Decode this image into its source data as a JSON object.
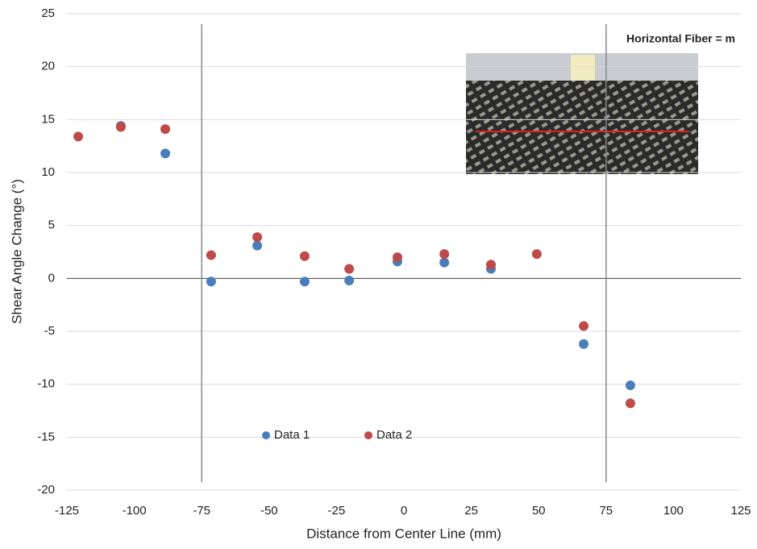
{
  "chart_data": {
    "type": "scatter",
    "x_label": "Distance from Center Line (mm)",
    "y_label": "Shear Angle Change (°)",
    "annotation": "Horizontal Fiber = m",
    "xlim": [
      -125,
      125
    ],
    "xticks": [
      -125,
      -100,
      -75,
      -50,
      -25,
      0,
      25,
      50,
      75,
      100,
      125
    ],
    "ylim": [
      -20,
      25
    ],
    "yticks": [
      -20,
      -15,
      -10,
      -5,
      0,
      5,
      10,
      15,
      20,
      25
    ],
    "grid": true,
    "vlines": [
      -75,
      75
    ],
    "series": [
      {
        "name": "Data 1",
        "color": "#4a7ebb",
        "x": [
          -105,
          -88.5,
          -71.5,
          -54.4,
          -36.8,
          -20.3,
          -2.4,
          15.0,
          32.3,
          66.7,
          84.0
        ],
        "values": [
          14.4,
          11.8,
          -0.3,
          3.1,
          -0.3,
          -0.2,
          1.6,
          1.5,
          0.9,
          -6.2,
          -10.1
        ]
      },
      {
        "name": "Data 2",
        "color": "#be4b48",
        "x": [
          -120.8,
          -105,
          -88.5,
          -71.5,
          -54.4,
          -36.8,
          -20.3,
          -2.4,
          15.0,
          32.3,
          49.3,
          66.7,
          84.0
        ],
        "values": [
          13.4,
          14.3,
          14.1,
          2.2,
          3.9,
          2.1,
          0.9,
          2.0,
          2.3,
          1.3,
          2.3,
          -4.5,
          -11.8
        ]
      }
    ]
  }
}
